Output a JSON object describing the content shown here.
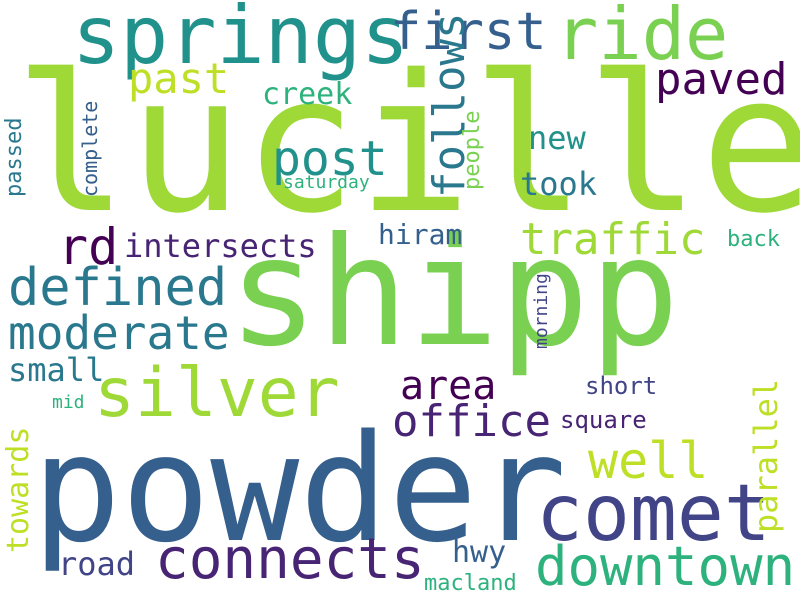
{
  "palette": {
    "yellow_green": "#bddf26",
    "light_green": "#7ad151",
    "bright_green": "#9fd938",
    "green": "#2db27d",
    "teal": "#21918c",
    "blue_teal": "#2a788e",
    "blue": "#355f8d",
    "indigo": "#414487",
    "purple": "#482475",
    "dark_purple": "#440154"
  },
  "words": {
    "lucille": "lucille",
    "shipp": "shipp",
    "powder": "powder",
    "springs": "springs",
    "comet": "comet",
    "ride": "ride",
    "silver": "silver",
    "connects": "connects",
    "downtown": "downtown",
    "first": "first",
    "defined": "defined",
    "moderate": "moderate",
    "post": "post",
    "office": "office",
    "paved": "paved",
    "past": "past",
    "traffic": "traffic",
    "area": "area",
    "well": "well",
    "rd": "rd",
    "intersects": "intersects",
    "follows": "follows",
    "creek": "creek",
    "took": "took",
    "new": "new",
    "hiram": "hiram",
    "small": "small",
    "towards": "towards",
    "parallel": "parallel",
    "road": "road",
    "hwy": "hwy",
    "macland": "macland",
    "square": "square",
    "short": "short",
    "back": "back",
    "people": "people",
    "complete": "complete",
    "passed": "passed",
    "saturday": "saturday",
    "morning": "morning",
    "mid": "mid"
  }
}
